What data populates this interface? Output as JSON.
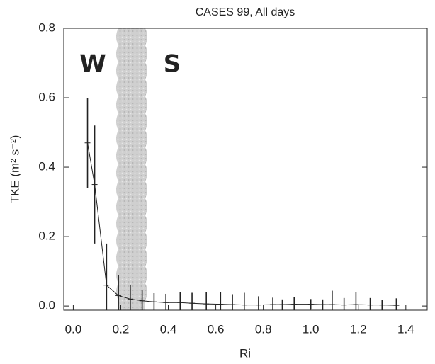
{
  "chart_data": {
    "type": "line",
    "title": "CASES 99, All days",
    "x_label": "Ri",
    "y_label": "TKE (m² s⁻²)",
    "annotations": [
      "W",
      "S"
    ],
    "x": [
      0.06,
      0.09,
      0.14,
      0.19,
      0.24,
      0.29,
      0.34,
      0.39,
      0.45,
      0.5,
      0.56,
      0.62,
      0.67,
      0.72,
      0.78,
      0.84,
      0.88,
      0.93,
      1.0,
      1.05,
      1.09,
      1.14,
      1.19,
      1.25,
      1.3,
      1.36
    ],
    "series": [
      {
        "color": "#222222",
        "values": [
          0.47,
          0.35,
          0.06,
          0.03,
          0.02,
          0.015,
          0.012,
          0.01,
          0.01,
          0.008,
          0.006,
          0.005,
          0.004,
          0.003,
          0.003,
          0.004,
          0.004,
          0.005,
          0.005,
          0.004,
          0.004,
          0.003,
          0.004,
          0.003,
          0.003,
          0.002
        ],
        "errors": [
          0.13,
          0.17,
          0.12,
          0.06,
          0.04,
          0.03,
          0.025,
          0.025,
          0.03,
          0.03,
          0.035,
          0.035,
          0.03,
          0.035,
          0.025,
          0.02,
          0.015,
          0.02,
          0.015,
          0.015,
          0.04,
          0.02,
          0.035,
          0.02,
          0.015,
          0.02
        ]
      }
    ],
    "xlim": [
      -0.04,
      1.49
    ],
    "xticks": [
      {
        "value": 0,
        "label": "0.0"
      },
      0.2,
      0.4,
      0.6,
      0.8,
      {
        "value": 1,
        "label": "1.0"
      },
      1.2,
      1.4
    ],
    "ylim": [
      -0.012,
      0.8
    ],
    "yticks": [
      {
        "value": 0,
        "label": "0.0"
      },
      0.2,
      0.4,
      0.6,
      0.8
    ]
  }
}
